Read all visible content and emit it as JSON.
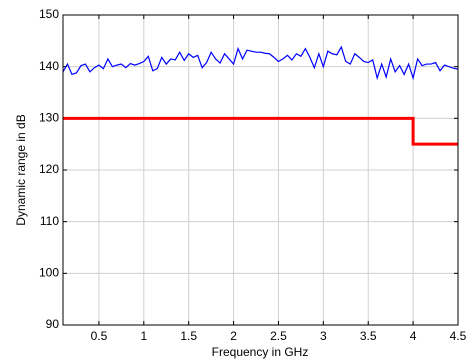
{
  "chart_data": {
    "type": "line",
    "xlabel": "Frequency in GHz",
    "ylabel": "Dynamic range in dB",
    "xlim": [
      0.1,
      4.5
    ],
    "ylim": [
      90,
      150
    ],
    "xticks": [
      0.5,
      1,
      1.5,
      2,
      2.5,
      3,
      3.5,
      4,
      4.5
    ],
    "yticks": [
      90,
      100,
      110,
      120,
      130,
      140,
      150
    ],
    "grid": true,
    "series": [
      {
        "color": "#0000ff",
        "x": [
          0.1,
          0.15,
          0.2,
          0.25,
          0.3,
          0.35,
          0.4,
          0.45,
          0.5,
          0.55,
          0.6,
          0.65,
          0.7,
          0.75,
          0.8,
          0.85,
          0.9,
          0.95,
          1,
          1.05,
          1.1,
          1.15,
          1.2,
          1.25,
          1.3,
          1.35,
          1.4,
          1.45,
          1.5,
          1.55,
          1.6,
          1.65,
          1.7,
          1.75,
          1.8,
          1.85,
          1.9,
          1.95,
          2,
          2.05,
          2.1,
          2.15,
          2.2,
          2.25,
          2.3,
          2.35,
          2.4,
          2.45,
          2.5,
          2.55,
          2.6,
          2.65,
          2.7,
          2.75,
          2.8,
          2.85,
          2.9,
          2.95,
          3,
          3.05,
          3.1,
          3.15,
          3.2,
          3.25,
          3.3,
          3.35,
          3.4,
          3.45,
          3.5,
          3.55,
          3.6,
          3.65,
          3.7,
          3.75,
          3.8,
          3.85,
          3.9,
          3.95,
          4,
          4.05,
          4.1,
          4.15,
          4.2,
          4.25,
          4.3,
          4.35,
          4.4,
          4.45,
          4.5
        ],
        "values": [
          139,
          140.5,
          138.5,
          138.8,
          140.2,
          140.5,
          139,
          139.8,
          140.3,
          139.6,
          141.5,
          140,
          140.3,
          140.5,
          139.8,
          140.6,
          140.3,
          140.6,
          141,
          142,
          139.2,
          139.6,
          141.8,
          140.5,
          141.5,
          141.3,
          142.8,
          141.2,
          142.5,
          141.8,
          142.2,
          139.8,
          140.8,
          142.8,
          141.5,
          140.7,
          142.5,
          141.5,
          140.5,
          143.5,
          141.5,
          143.2,
          143,
          142.8,
          142.8,
          142.6,
          142.5,
          141.8,
          141,
          141.5,
          142.2,
          141.3,
          142.5,
          142,
          143.5,
          141.8,
          139.8,
          142.5,
          140,
          143,
          142.5,
          142.3,
          143.8,
          141,
          140.5,
          142.5,
          141.8,
          141,
          140.8,
          141.3,
          137.8,
          140.5,
          138,
          141.5,
          139,
          140.2,
          138.5,
          140.5,
          137.8,
          141.5,
          140.2,
          140.5,
          140.5,
          140.8,
          139.2,
          140.3,
          140,
          139.7,
          139.5
        ]
      },
      {
        "color": "#ff0000",
        "x": [
          0.1,
          4,
          4,
          4.5
        ],
        "values": [
          130,
          130,
          125,
          125
        ]
      }
    ]
  }
}
